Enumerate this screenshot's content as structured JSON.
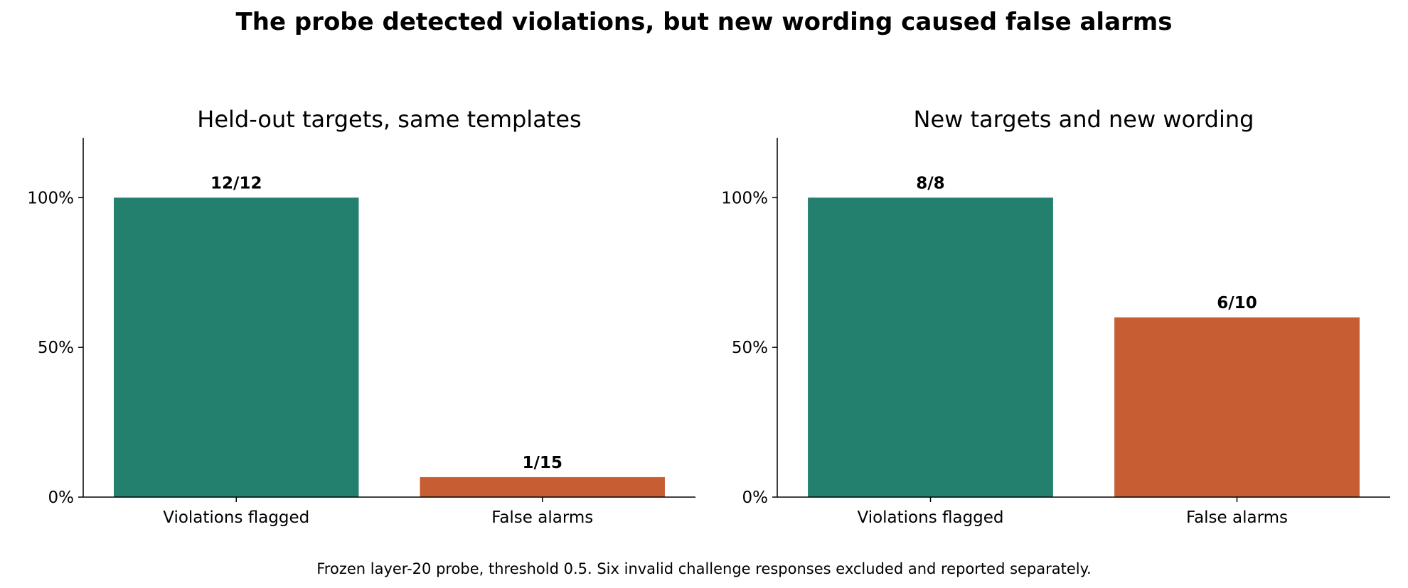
{
  "figure": {
    "title": "The probe detected violations, but new wording caused false alarms",
    "footnote": "Frozen layer-20 probe, threshold 0.5. Six invalid challenge responses excluded and reported separately."
  },
  "colors": {
    "violations": "#237f6e",
    "false_alarms": "#c75d33",
    "axis": "#000000"
  },
  "chart_data": [
    {
      "type": "bar",
      "title": "Held-out targets, same templates",
      "categories": [
        "Violations flagged",
        "False alarms"
      ],
      "values": [
        1.0,
        0.0667
      ],
      "bar_labels": [
        "12/12",
        "1/15"
      ],
      "counts": [
        {
          "hits": 12,
          "total": 12
        },
        {
          "hits": 1,
          "total": 15
        }
      ],
      "ylim": [
        0,
        1.2
      ],
      "yticks": [
        0,
        0.5,
        1.0
      ],
      "ytick_labels": [
        "0%",
        "50%",
        "100%"
      ],
      "xlabel": "",
      "ylabel": "",
      "grid": false,
      "spines": "left-bottom"
    },
    {
      "type": "bar",
      "title": "New targets and new wording",
      "categories": [
        "Violations flagged",
        "False alarms"
      ],
      "values": [
        1.0,
        0.6
      ],
      "bar_labels": [
        "8/8",
        "6/10"
      ],
      "counts": [
        {
          "hits": 8,
          "total": 8
        },
        {
          "hits": 6,
          "total": 10
        }
      ],
      "ylim": [
        0,
        1.2
      ],
      "yticks": [
        0,
        0.5,
        1.0
      ],
      "ytick_labels": [
        "0%",
        "50%",
        "100%"
      ],
      "xlabel": "",
      "ylabel": "",
      "grid": false,
      "spines": "left-bottom"
    }
  ]
}
